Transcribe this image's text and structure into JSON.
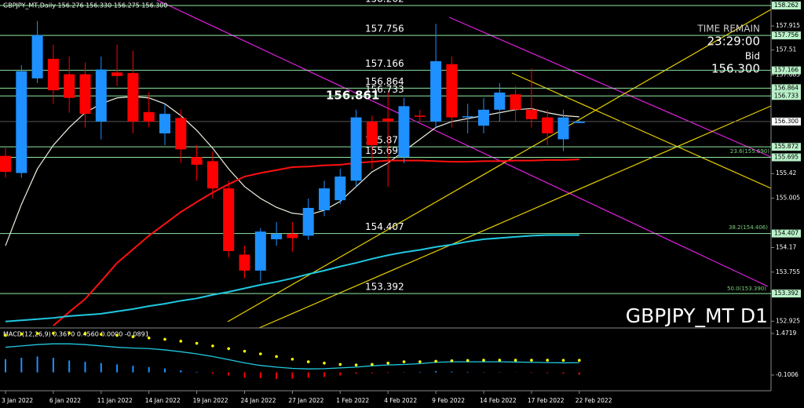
{
  "chart_data": [
    {
      "type": "candlestick",
      "title": "GBPJPY_MT,Daily 156.276 156.330 156.275 156.300",
      "watermark": "GBPJPY_MT D1",
      "categories": [
        "3 Jan 2022",
        null,
        null,
        "6 Jan 2022",
        null,
        null,
        "11 Jan 2022",
        null,
        null,
        "14 Jan 2022",
        null,
        null,
        "19 Jan 2022",
        null,
        null,
        "24 Jan 2022",
        null,
        null,
        "27 Jan 2022",
        null,
        null,
        "1 Feb 2022",
        null,
        null,
        "4 Feb 2022",
        null,
        null,
        "9 Feb 2022",
        null,
        null,
        "14 Feb 2022",
        null,
        null,
        "17 Feb 2022",
        null,
        null,
        "22 Feb 2022"
      ],
      "open": [
        155.72,
        155.43,
        157.03,
        157.36,
        157.1,
        157.1,
        156.3,
        157.13,
        157.12,
        156.46,
        156.1,
        156.36,
        155.7,
        155.63,
        155.17,
        154.05,
        153.78,
        154.31,
        154.4,
        154.37,
        154.8,
        154.97,
        155.3,
        156.3,
        156.35,
        155.7,
        156.4,
        156.3,
        157.27,
        156.37,
        156.23,
        156.5,
        156.76,
        156.5,
        156.37,
        156.0,
        156.276
      ],
      "high": [
        155.85,
        157.25,
        158.0,
        157.6,
        157.4,
        157.3,
        157.4,
        157.6,
        157.5,
        156.8,
        156.6,
        156.5,
        155.9,
        155.8,
        155.3,
        154.2,
        154.5,
        154.6,
        154.6,
        155.0,
        155.3,
        155.5,
        156.5,
        156.4,
        156.8,
        156.7,
        156.5,
        157.95,
        157.4,
        156.6,
        156.7,
        156.95,
        156.9,
        157.2,
        156.5,
        156.5,
        156.33
      ],
      "low": [
        155.35,
        155.35,
        156.95,
        156.6,
        156.45,
        156.2,
        156.0,
        156.9,
        156.1,
        156.2,
        155.9,
        155.6,
        155.3,
        155.0,
        154.0,
        153.65,
        153.6,
        154.2,
        154.1,
        154.3,
        154.7,
        154.9,
        155.2,
        155.5,
        155.2,
        155.6,
        156.3,
        156.2,
        156.2,
        156.1,
        156.1,
        156.3,
        156.3,
        156.2,
        155.9,
        155.8,
        156.275
      ],
      "close": [
        155.45,
        157.15,
        157.76,
        156.83,
        156.7,
        156.43,
        157.18,
        157.07,
        156.3,
        156.3,
        156.43,
        155.83,
        155.57,
        155.17,
        154.11,
        153.78,
        154.44,
        154.4,
        154.33,
        154.84,
        155.17,
        155.37,
        156.37,
        155.9,
        156.3,
        156.56,
        156.38,
        157.32,
        156.37,
        156.39,
        156.5,
        156.79,
        156.5,
        156.34,
        156.1,
        156.37,
        156.3
      ],
      "up_color": "#1e90ff",
      "down_color": "#ff0000",
      "series": [
        {
          "color": "#f0f0e0",
          "values": [
            154.2,
            154.9,
            155.5,
            155.9,
            156.2,
            156.45,
            156.6,
            156.7,
            156.72,
            156.7,
            156.6,
            156.4,
            156.15,
            155.85,
            155.5,
            155.2,
            155.0,
            154.85,
            154.75,
            154.72,
            154.8,
            154.95,
            155.2,
            155.45,
            155.6,
            155.8,
            156.0,
            156.2,
            156.3,
            156.35,
            156.4,
            156.45,
            156.5,
            156.52,
            156.45,
            156.4,
            156.38
          ]
        },
        {
          "color": "#ff1010",
          "values": [
            null,
            null,
            null,
            152.85,
            153.08,
            153.3,
            153.6,
            153.91,
            154.14,
            154.37,
            154.57,
            154.77,
            154.94,
            155.1,
            155.24,
            155.37,
            155.43,
            155.48,
            155.53,
            155.54,
            155.56,
            155.57,
            155.6,
            155.62,
            155.64,
            155.64,
            155.64,
            155.63,
            155.62,
            155.62,
            155.63,
            155.63,
            155.64,
            155.64,
            155.65,
            155.65,
            155.66
          ]
        },
        {
          "color": "#20c8e0",
          "values": [
            152.92,
            152.94,
            152.96,
            152.98,
            153.01,
            153.03,
            153.05,
            153.09,
            153.13,
            153.18,
            153.22,
            153.27,
            153.31,
            153.37,
            153.42,
            153.48,
            153.54,
            153.59,
            153.65,
            153.72,
            153.78,
            153.85,
            153.91,
            153.98,
            154.04,
            154.09,
            154.13,
            154.18,
            154.22,
            154.27,
            154.31,
            154.33,
            154.35,
            154.37,
            154.38,
            154.38,
            154.38
          ]
        }
      ],
      "ylim": [
        152.81,
        158.355
      ],
      "yticks": [
        157.915,
        157.51,
        157.085,
        155.42,
        155.005,
        154.17,
        153.755,
        152.925
      ],
      "levels": [
        158.262,
        157.756,
        157.166,
        156.864,
        156.733,
        155.872,
        155.695,
        154.407,
        153.392
      ],
      "level_color": "#8fe8a0",
      "bid": {
        "value": 156.3,
        "label": "156.300"
      },
      "highlight_price": "156.861",
      "time_remain_label": "TIME REMAIN",
      "time_remain": "23:29:00",
      "bid_label": "Bid",
      "fib_labels": [
        "23.6(155.690)",
        "38.2(154.406)",
        "50.0(153.390)"
      ]
    },
    {
      "type": "macd",
      "title": "MACD(12,26,9) 0.3670 0.4560 0.0000 -0.0891",
      "histogram": [
        0.5,
        0.55,
        0.6,
        0.55,
        0.45,
        0.4,
        0.35,
        0.3,
        0.25,
        0.2,
        0.15,
        0.08,
        0.02,
        -0.05,
        -0.12,
        -0.2,
        -0.22,
        -0.25,
        -0.24,
        -0.2,
        -0.17,
        -0.12,
        -0.05,
        -0.03,
        -0.02,
        0.01,
        0.02,
        0.05,
        0.03,
        0.02,
        0.01,
        0.01,
        -0.01,
        -0.02,
        -0.03,
        -0.05,
        -0.0891
      ],
      "line": [
        0.95,
        1.0,
        1.05,
        1.08,
        1.08,
        1.05,
        1.0,
        0.95,
        0.92,
        0.9,
        0.85,
        0.78,
        0.7,
        0.6,
        0.48,
        0.36,
        0.26,
        0.2,
        0.15,
        0.13,
        0.14,
        0.17,
        0.2,
        0.25,
        0.28,
        0.3,
        0.33,
        0.38,
        0.4,
        0.4,
        0.4,
        0.4,
        0.39,
        0.38,
        0.37,
        0.36,
        0.367
      ],
      "signal": [
        1.4,
        1.45,
        1.47,
        1.48,
        1.48,
        1.47,
        1.44,
        1.4,
        1.35,
        1.3,
        1.25,
        1.18,
        1.1,
        1.0,
        0.9,
        0.8,
        0.7,
        0.6,
        0.5,
        0.4,
        0.35,
        0.3,
        0.28,
        0.3,
        0.35,
        0.4,
        0.4,
        0.42,
        0.44,
        0.45,
        0.46,
        0.46,
        0.46,
        0.46,
        0.46,
        0.456,
        0.456
      ],
      "line_color": "#20c8e0",
      "signal_color": "#ffff00",
      "up_color": "#1e90ff",
      "down_color": "#ff0000",
      "ylim": [
        -0.665,
        1.62
      ],
      "yticks": [
        1.4719,
        -0.1006
      ]
    }
  ]
}
